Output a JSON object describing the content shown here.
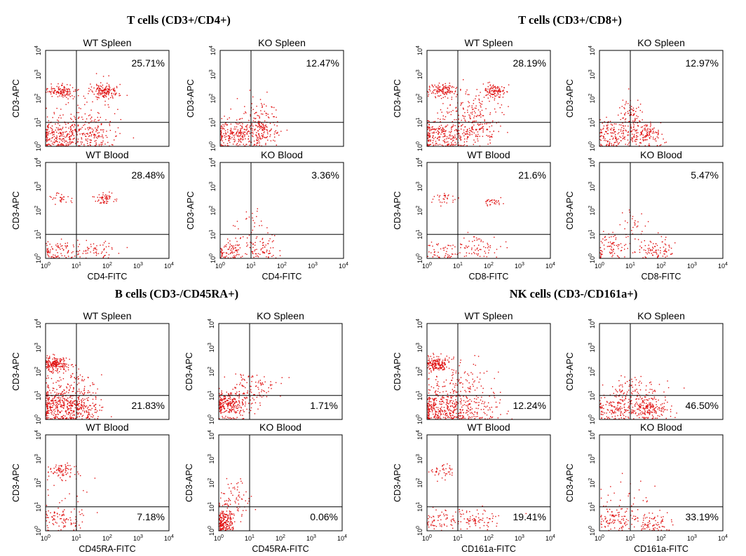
{
  "chart_data": {
    "type": "scatter",
    "axes": {
      "scale": "log10",
      "range": [
        1,
        10000
      ],
      "tick_labels": [
        "10^0",
        "10^1",
        "10^2",
        "10^3",
        "10^4"
      ],
      "gate": {
        "x": 10,
        "y": 10
      }
    },
    "color": "#e01010",
    "groups": [
      {
        "title": "T cells (CD3+/CD4+)",
        "panels": [
          {
            "title": "WT Spleen",
            "xlabel": "",
            "ylabel": "CD3-APC",
            "percent": "25.71%",
            "quadrant": "upper-right",
            "clusters": [
              {
                "x": 3,
                "y": 200,
                "sx": 0.25,
                "sy": 0.15,
                "n": 120
              },
              {
                "x": 80,
                "y": 200,
                "sx": 0.22,
                "sy": 0.15,
                "n": 150
              },
              {
                "x": 3,
                "y": 3,
                "sx": 0.45,
                "sy": 0.35,
                "n": 260
              },
              {
                "x": 30,
                "y": 3,
                "sx": 0.4,
                "sy": 0.35,
                "n": 120
              },
              {
                "x": 20,
                "y": 20,
                "sx": 0.7,
                "sy": 0.8,
                "n": 70
              }
            ]
          },
          {
            "title": "KO Spleen",
            "xlabel": "",
            "ylabel": "CD3-APC",
            "percent": "12.47%",
            "quadrant": "upper-right",
            "clusters": [
              {
                "x": 3,
                "y": 3,
                "sx": 0.35,
                "sy": 0.3,
                "n": 200
              },
              {
                "x": 20,
                "y": 4,
                "sx": 0.3,
                "sy": 0.35,
                "n": 150
              },
              {
                "x": 20,
                "y": 30,
                "sx": 0.3,
                "sy": 0.35,
                "n": 50
              }
            ]
          },
          {
            "title": "WT Blood",
            "xlabel": "CD4-FITC",
            "ylabel": "CD3-APC",
            "percent": "28.48%",
            "quadrant": "upper-right",
            "clusters": [
              {
                "x": 3,
                "y": 300,
                "sx": 0.15,
                "sy": 0.12,
                "n": 30
              },
              {
                "x": 80,
                "y": 300,
                "sx": 0.15,
                "sy": 0.12,
                "n": 55
              },
              {
                "x": 3,
                "y": 2,
                "sx": 0.35,
                "sy": 0.25,
                "n": 90
              },
              {
                "x": 50,
                "y": 2,
                "sx": 0.3,
                "sy": 0.25,
                "n": 50
              }
            ]
          },
          {
            "title": "KO Blood",
            "xlabel": "CD4-FITC",
            "ylabel": "CD3-APC",
            "percent": "3.36%",
            "quadrant": "upper-right",
            "clusters": [
              {
                "x": 2,
                "y": 2,
                "sx": 0.25,
                "sy": 0.2,
                "n": 80
              },
              {
                "x": 20,
                "y": 3,
                "sx": 0.3,
                "sy": 0.3,
                "n": 80
              },
              {
                "x": 8,
                "y": 30,
                "sx": 0.35,
                "sy": 0.3,
                "n": 25
              }
            ]
          }
        ]
      },
      {
        "title": "T cells (CD3+/CD8+)",
        "panels": [
          {
            "title": "WT Spleen",
            "xlabel": "",
            "ylabel": "CD3-APC",
            "percent": "28.19%",
            "quadrant": "upper-right",
            "clusters": [
              {
                "x": 3,
                "y": 200,
                "sx": 0.25,
                "sy": 0.15,
                "n": 120
              },
              {
                "x": 150,
                "y": 200,
                "sx": 0.2,
                "sy": 0.15,
                "n": 110
              },
              {
                "x": 3,
                "y": 3,
                "sx": 0.45,
                "sy": 0.35,
                "n": 230
              },
              {
                "x": 30,
                "y": 5,
                "sx": 0.4,
                "sy": 0.35,
                "n": 150
              },
              {
                "x": 30,
                "y": 40,
                "sx": 0.5,
                "sy": 0.4,
                "n": 100
              }
            ]
          },
          {
            "title": "KO Spleen",
            "xlabel": "",
            "ylabel": "CD3-APC",
            "percent": "12.97%",
            "quadrant": "upper-right",
            "clusters": [
              {
                "x": 3,
                "y": 3,
                "sx": 0.35,
                "sy": 0.3,
                "n": 150
              },
              {
                "x": 30,
                "y": 3,
                "sx": 0.3,
                "sy": 0.3,
                "n": 150
              },
              {
                "x": 10,
                "y": 20,
                "sx": 0.2,
                "sy": 0.35,
                "n": 70
              }
            ]
          },
          {
            "title": "WT Blood",
            "xlabel": "CD8-FITC",
            "ylabel": "CD3-APC",
            "percent": "21.6%",
            "quadrant": "upper-right",
            "clusters": [
              {
                "x": 3,
                "y": 300,
                "sx": 0.2,
                "sy": 0.15,
                "n": 30
              },
              {
                "x": 150,
                "y": 200,
                "sx": 0.15,
                "sy": 0.12,
                "n": 30
              },
              {
                "x": 3,
                "y": 2,
                "sx": 0.35,
                "sy": 0.25,
                "n": 50
              },
              {
                "x": 40,
                "y": 3,
                "sx": 0.4,
                "sy": 0.3,
                "n": 70
              }
            ]
          },
          {
            "title": "KO Blood",
            "xlabel": "CD8-FITC",
            "ylabel": "CD3-APC",
            "percent": "5.47%",
            "quadrant": "upper-right",
            "clusters": [
              {
                "x": 3,
                "y": 3,
                "sx": 0.35,
                "sy": 0.3,
                "n": 80
              },
              {
                "x": 60,
                "y": 2,
                "sx": 0.3,
                "sy": 0.25,
                "n": 90
              },
              {
                "x": 12,
                "y": 30,
                "sx": 0.25,
                "sy": 0.35,
                "n": 25
              }
            ]
          }
        ]
      },
      {
        "title": "B cells (CD3-/CD45RA+)",
        "panels": [
          {
            "title": "WT Spleen",
            "xlabel": "",
            "ylabel": "CD3-APC",
            "percent": "21.83%",
            "quadrant": "lower-right",
            "clusters": [
              {
                "x": 2,
                "y": 200,
                "sx": 0.2,
                "sy": 0.15,
                "n": 180
              },
              {
                "x": 3,
                "y": 3,
                "sx": 0.45,
                "sy": 0.35,
                "n": 300
              },
              {
                "x": 15,
                "y": 3,
                "sx": 0.3,
                "sy": 0.35,
                "n": 160
              },
              {
                "x": 5,
                "y": 30,
                "sx": 0.45,
                "sy": 0.45,
                "n": 120
              }
            ]
          },
          {
            "title": "KO Spleen",
            "xlabel": "",
            "ylabel": "CD3-APC",
            "percent": "1.71%",
            "quadrant": "lower-right",
            "clusters": [
              {
                "x": 2,
                "y": 4,
                "sx": 0.3,
                "sy": 0.25,
                "n": 250
              },
              {
                "x": 8,
                "y": 20,
                "sx": 0.35,
                "sy": 0.35,
                "n": 90
              },
              {
                "x": 30,
                "y": 20,
                "sx": 0.3,
                "sy": 0.3,
                "n": 20
              }
            ]
          },
          {
            "title": "WT Blood",
            "xlabel": "CD45RA-FITC",
            "ylabel": "CD3-APC",
            "percent": "7.18%",
            "quadrant": "lower-right",
            "clusters": [
              {
                "x": 3,
                "y": 300,
                "sx": 0.2,
                "sy": 0.15,
                "n": 70
              },
              {
                "x": 3,
                "y": 3,
                "sx": 0.35,
                "sy": 0.25,
                "n": 90
              },
              {
                "x": 5,
                "y": 60,
                "sx": 0.35,
                "sy": 0.5,
                "n": 20
              }
            ]
          },
          {
            "title": "KO Blood",
            "xlabel": "CD45RA-FITC",
            "ylabel": "CD3-APC",
            "percent": "0.06%",
            "quadrant": "lower-right",
            "clusters": [
              {
                "x": 1.5,
                "y": 2,
                "sx": 0.15,
                "sy": 0.25,
                "n": 200
              },
              {
                "x": 3,
                "y": 20,
                "sx": 0.3,
                "sy": 0.4,
                "n": 70
              }
            ]
          }
        ]
      },
      {
        "title": "NK cells (CD3-/CD161a+)",
        "panels": [
          {
            "title": "WT Spleen",
            "xlabel": "",
            "ylabel": "CD3-APC",
            "percent": "12.24%",
            "quadrant": "lower-right",
            "clusters": [
              {
                "x": 2,
                "y": 200,
                "sx": 0.2,
                "sy": 0.15,
                "n": 160
              },
              {
                "x": 3,
                "y": 3,
                "sx": 0.45,
                "sy": 0.35,
                "n": 300
              },
              {
                "x": 30,
                "y": 3,
                "sx": 0.5,
                "sy": 0.35,
                "n": 120
              },
              {
                "x": 10,
                "y": 30,
                "sx": 0.6,
                "sy": 0.5,
                "n": 130
              }
            ]
          },
          {
            "title": "KO Spleen",
            "xlabel": "",
            "ylabel": "CD3-APC",
            "percent": "46.50%",
            "quadrant": "lower-right",
            "clusters": [
              {
                "x": 3,
                "y": 3,
                "sx": 0.35,
                "sy": 0.3,
                "n": 140
              },
              {
                "x": 40,
                "y": 3,
                "sx": 0.3,
                "sy": 0.3,
                "n": 200
              },
              {
                "x": 10,
                "y": 20,
                "sx": 0.4,
                "sy": 0.35,
                "n": 80
              }
            ]
          },
          {
            "title": "WT Blood",
            "xlabel": "CD161a-FITC",
            "ylabel": "CD3-APC",
            "percent": "19.41%",
            "quadrant": "lower-right",
            "clusters": [
              {
                "x": 3,
                "y": 300,
                "sx": 0.2,
                "sy": 0.15,
                "n": 40
              },
              {
                "x": 3,
                "y": 3,
                "sx": 0.35,
                "sy": 0.25,
                "n": 60
              },
              {
                "x": 40,
                "y": 3,
                "sx": 0.4,
                "sy": 0.25,
                "n": 80
              }
            ]
          },
          {
            "title": "KO Blood",
            "xlabel": "CD161a-FITC",
            "ylabel": "CD3-APC",
            "percent": "33.19%",
            "quadrant": "lower-right",
            "clusters": [
              {
                "x": 3,
                "y": 3,
                "sx": 0.35,
                "sy": 0.3,
                "n": 100
              },
              {
                "x": 60,
                "y": 2,
                "sx": 0.3,
                "sy": 0.25,
                "n": 80
              },
              {
                "x": 8,
                "y": 40,
                "sx": 0.5,
                "sy": 0.5,
                "n": 25
              }
            ]
          }
        ]
      }
    ]
  }
}
